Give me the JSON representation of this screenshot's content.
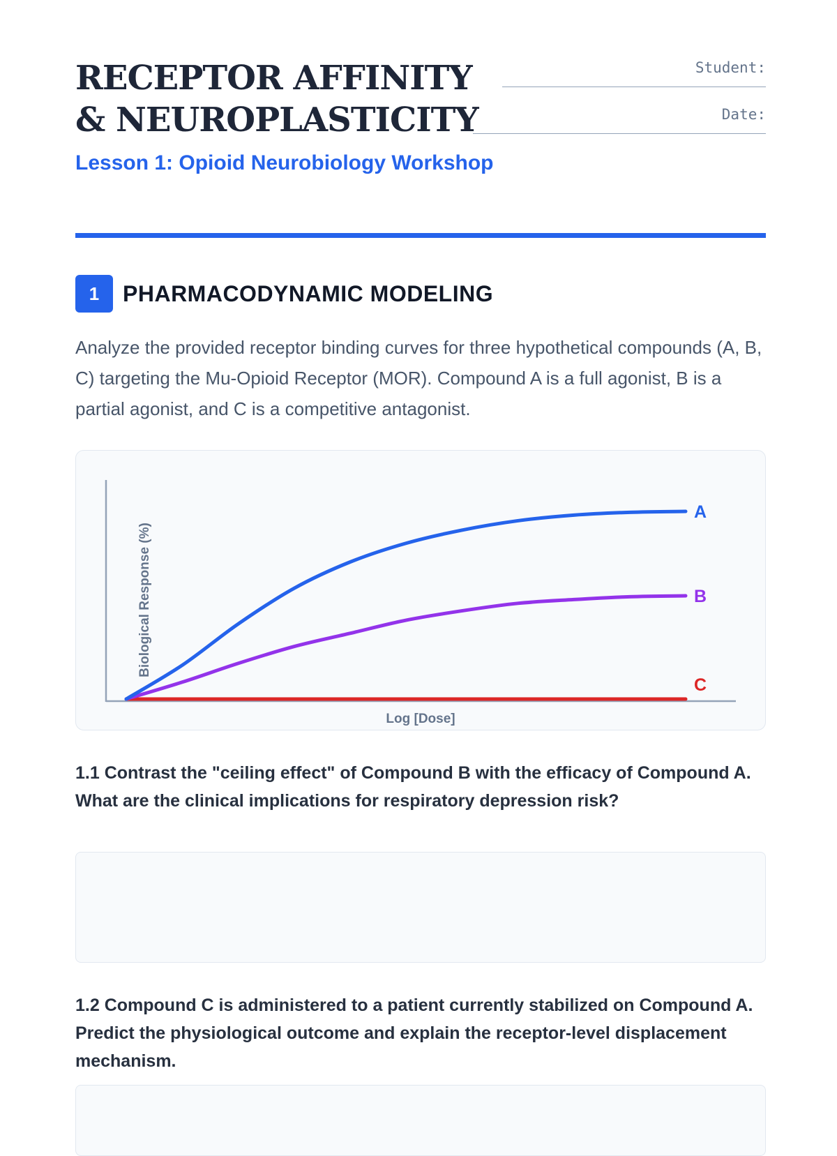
{
  "header": {
    "title": "RECEPTOR AFFINITY & NEUROPLASTICITY",
    "subtitle": "Lesson 1: Opioid Neurobiology Workshop",
    "student_label": "Student:",
    "date_label": "Date:"
  },
  "section": {
    "number": "1",
    "title": "PHARMACODYNAMIC MODELING",
    "intro": "Analyze the provided receptor binding curves for three hypothetical compounds (A, B, C) targeting the Mu-Opioid Receptor (MOR). Compound A is a full agonist, B is a partial agonist, and C is a competitive antagonist."
  },
  "chart_data": {
    "type": "line",
    "title": "",
    "xlabel": "Log [Dose]",
    "ylabel": "Biological Response (%)",
    "x": [
      0,
      1,
      2,
      3,
      4,
      5,
      6,
      7,
      8,
      9,
      10
    ],
    "xlim": [
      0,
      10
    ],
    "ylim": [
      0,
      110
    ],
    "grid": false,
    "legend": "inline-right",
    "series": [
      {
        "name": "A",
        "color": "#2563eb",
        "values": [
          0,
          18,
          40,
          59,
          73,
          83,
          90,
          95,
          98,
          99.5,
          100
        ]
      },
      {
        "name": "B",
        "color": "#9333ea",
        "values": [
          0,
          9,
          19,
          28,
          35,
          42,
          47,
          51,
          53,
          54.5,
          55
        ]
      },
      {
        "name": "C",
        "color": "#dc2626",
        "values": [
          0,
          0,
          0,
          0,
          0,
          0,
          0,
          0,
          0,
          0,
          0
        ]
      }
    ]
  },
  "questions": [
    {
      "text": "1.1 Contrast the \"ceiling effect\" of Compound B with the efficacy of Compound A. What are the clinical implications for respiratory depression risk?"
    },
    {
      "text": "1.2 Compound C is administered to a patient currently stabilized on Compound A. Predict the physiological outcome and explain the receptor-level displacement mechanism."
    }
  ]
}
